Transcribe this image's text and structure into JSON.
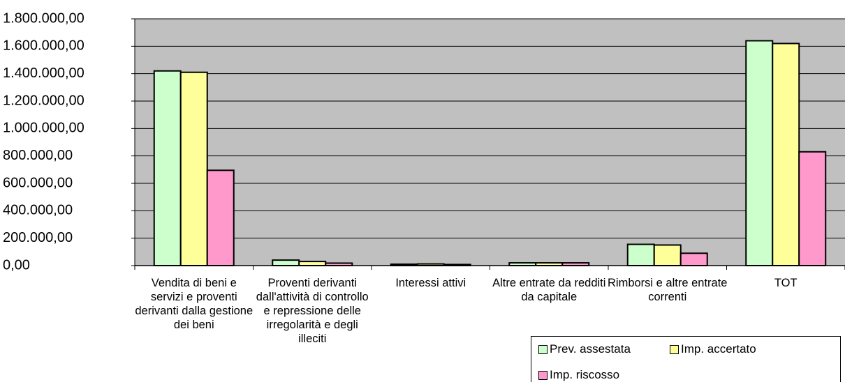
{
  "chart_data": {
    "type": "bar",
    "categories": [
      "Vendita di beni e servizi e proventi derivanti dalla gestione dei beni",
      "Proventi derivanti dall'attività di controllo e repressione delle irregolarità e degli illeciti",
      "Interessi attivi",
      "Altre entrate da redditi da capitale",
      "Rimborsi e altre entrate correnti",
      "TOT"
    ],
    "series": [
      {
        "name": "Prev. assestata",
        "color": "#ccffcc",
        "values": [
          1420000,
          40000,
          10000,
          20000,
          155000,
          1640000
        ]
      },
      {
        "name": "Imp. accertato",
        "color": "#ffff99",
        "values": [
          1410000,
          30000,
          12000,
          20000,
          150000,
          1620000
        ]
      },
      {
        "name": "Imp. riscosso",
        "color": "#ff99cc",
        "values": [
          695000,
          18000,
          8000,
          20000,
          90000,
          830000
        ]
      }
    ],
    "ylim": [
      0,
      1800000
    ],
    "yticks": [
      {
        "value": 0,
        "label": "0,00"
      },
      {
        "value": 200000,
        "label": "200.000,00"
      },
      {
        "value": 400000,
        "label": "400.000,00"
      },
      {
        "value": 600000,
        "label": "600.000,00"
      },
      {
        "value": 800000,
        "label": "800.000,00"
      },
      {
        "value": 1000000,
        "label": "1.000.000,00"
      },
      {
        "value": 1200000,
        "label": "1.200.000,00"
      },
      {
        "value": 1400000,
        "label": "1.400.000,00"
      },
      {
        "value": 1600000,
        "label": "1.600.000,00"
      },
      {
        "value": 1800000,
        "label": "1.800.000,00"
      }
    ],
    "grid": true,
    "background": "#c0c0c0",
    "legend": "bottom-right"
  }
}
